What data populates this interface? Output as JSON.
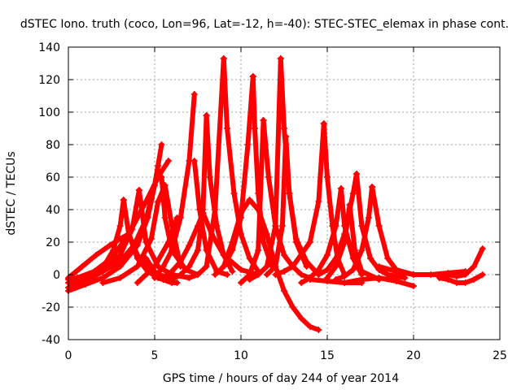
{
  "chart_data": {
    "type": "line",
    "title": "dSTEC Iono. truth (coco, Lon=96, Lat=-12, h=-40): STEC-STEC_elemax in phase cont.",
    "xlabel": "GPS time / hours of day 244 of year 2014",
    "ylabel": "dSTEC  / TECUs",
    "xlim": [
      0,
      25
    ],
    "ylim": [
      -40,
      140
    ],
    "xticks": [
      0,
      5,
      10,
      15,
      20,
      25
    ],
    "yticks": [
      -40,
      -20,
      0,
      20,
      40,
      60,
      80,
      100,
      120,
      140
    ],
    "grid": true,
    "legend": "none",
    "color": "#ff0000",
    "marker": "plus",
    "series": [
      {
        "x": [
          0.0,
          0.7,
          1.4,
          2.1,
          2.6,
          3.0,
          3.2
        ],
        "y": [
          -5,
          -3,
          0,
          6,
          15,
          30,
          46
        ]
      },
      {
        "x": [
          3.2,
          3.5,
          4.0,
          4.6,
          5.2,
          6.0
        ],
        "y": [
          46,
          25,
          10,
          2,
          -2,
          -5
        ]
      },
      {
        "x": [
          0.0,
          1.0,
          2.0,
          3.0,
          3.7,
          4.1
        ],
        "y": [
          -8,
          -4,
          2,
          12,
          28,
          52
        ]
      },
      {
        "x": [
          4.1,
          4.5,
          5.2,
          6.0,
          7.0
        ],
        "y": [
          52,
          20,
          5,
          0,
          -2
        ]
      },
      {
        "x": [
          0.0,
          1.0,
          2.0,
          3.0,
          4.0,
          4.6,
          5.0,
          5.2
        ],
        "y": [
          -10,
          -6,
          -2,
          5,
          18,
          35,
          55,
          67
        ]
      },
      {
        "x": [
          0.0,
          0.8,
          1.6,
          2.4,
          3.0,
          3.5
        ],
        "y": [
          -2,
          5,
          12,
          18,
          22,
          25
        ]
      },
      {
        "x": [
          3.5,
          4.0,
          4.6,
          5.2,
          6.0
        ],
        "y": [
          25,
          12,
          4,
          0,
          -2
        ]
      },
      {
        "x": [
          0.0,
          1.0,
          2.0,
          3.0,
          3.8,
          4.5,
          5.0,
          5.4
        ],
        "y": [
          -3,
          -1,
          2,
          8,
          18,
          34,
          55,
          80
        ]
      },
      {
        "x": [
          5.4,
          5.6,
          6.0,
          6.8,
          7.5
        ],
        "y": [
          60,
          35,
          15,
          3,
          0
        ]
      },
      {
        "x": [
          2.0,
          3.0,
          4.0,
          4.8,
          5.2,
          5.6,
          6.0,
          6.5
        ],
        "y": [
          -5,
          -2,
          5,
          22,
          45,
          55,
          30,
          5
        ]
      },
      {
        "x": [
          0.5,
          1.5,
          2.5,
          3.5,
          4.5,
          5.3,
          5.8
        ],
        "y": [
          -2,
          2,
          10,
          25,
          45,
          62,
          70
        ]
      },
      {
        "x": [
          4.5,
          5.0,
          5.5,
          6.0,
          6.3
        ],
        "y": [
          10,
          2,
          -3,
          -5,
          -5
        ]
      },
      {
        "x": [
          4.0,
          5.0,
          5.8,
          6.3
        ],
        "y": [
          -5,
          5,
          20,
          35
        ]
      },
      {
        "x": [
          5.0,
          5.5,
          6.0,
          6.5,
          7.0,
          7.3
        ],
        "y": [
          -2,
          5,
          15,
          35,
          70,
          111
        ]
      },
      {
        "x": [
          7.3,
          7.6,
          8.0,
          8.6,
          9.2
        ],
        "y": [
          70,
          40,
          15,
          2,
          0
        ]
      },
      {
        "x": [
          5.5,
          6.0,
          6.5,
          7.0,
          7.5,
          7.8
        ],
        "y": [
          -2,
          2,
          8,
          18,
          30,
          38
        ]
      },
      {
        "x": [
          7.8,
          8.3,
          9.0,
          10.0,
          11.0
        ],
        "y": [
          38,
          25,
          12,
          3,
          0
        ]
      },
      {
        "x": [
          6.0,
          6.5,
          7.0,
          7.5,
          7.8,
          8.0
        ],
        "y": [
          -3,
          0,
          5,
          15,
          40,
          98
        ]
      },
      {
        "x": [
          8.0,
          8.2,
          8.6,
          9.0,
          9.5
        ],
        "y": [
          98,
          60,
          30,
          12,
          2
        ]
      },
      {
        "x": [
          7.0,
          7.5,
          8.0,
          8.5,
          9.0
        ],
        "y": [
          -2,
          0,
          5,
          40,
          133
        ]
      },
      {
        "x": [
          9.0,
          9.2,
          9.6,
          10.0,
          10.5,
          11.0
        ],
        "y": [
          133,
          90,
          50,
          25,
          10,
          2
        ]
      },
      {
        "x": [
          8.5,
          9.0,
          9.5,
          10.0,
          10.4,
          10.7
        ],
        "y": [
          0,
          5,
          15,
          35,
          80,
          122
        ]
      },
      {
        "x": [
          10.7,
          10.8,
          11.0,
          11.3,
          11.8
        ],
        "y": [
          122,
          90,
          50,
          20,
          5
        ]
      },
      {
        "x": [
          9.0,
          9.5,
          10.0,
          10.5,
          11.0,
          11.5,
          12.0,
          12.5,
          13.0,
          13.5,
          14.0,
          14.5
        ],
        "y": [
          5,
          20,
          38,
          46,
          40,
          25,
          5,
          -10,
          -20,
          -27,
          -32,
          -34
        ]
      },
      {
        "x": [
          10.0,
          10.5,
          11.0,
          11.3
        ],
        "y": [
          -5,
          0,
          15,
          95
        ]
      },
      {
        "x": [
          11.3,
          11.6,
          12.0,
          12.5,
          13.0,
          13.5,
          14.0
        ],
        "y": [
          95,
          60,
          30,
          12,
          5,
          0,
          -2
        ]
      },
      {
        "x": [
          10.5,
          11.0,
          11.5,
          12.0,
          12.3
        ],
        "y": [
          -3,
          0,
          5,
          30,
          133
        ]
      },
      {
        "x": [
          12.3,
          12.5,
          12.8,
          13.2,
          13.8
        ],
        "y": [
          133,
          90,
          50,
          20,
          5
        ]
      },
      {
        "x": [
          11.5,
          12.0,
          12.4,
          12.6
        ],
        "y": [
          0,
          5,
          30,
          85
        ]
      },
      {
        "x": [
          12.6,
          12.8,
          13.2,
          13.8,
          14.5
        ],
        "y": [
          85,
          50,
          22,
          8,
          0
        ]
      },
      {
        "x": [
          12.0,
          12.5,
          13.0,
          14.0,
          14.5,
          14.8
        ],
        "y": [
          0,
          2,
          5,
          20,
          45,
          93
        ]
      },
      {
        "x": [
          14.8,
          15.0,
          15.3,
          15.6,
          16.0
        ],
        "y": [
          93,
          60,
          30,
          10,
          0
        ]
      },
      {
        "x": [
          13.5,
          14.0,
          14.5,
          15.0,
          15.5,
          15.8
        ],
        "y": [
          -5,
          -2,
          3,
          12,
          30,
          53
        ]
      },
      {
        "x": [
          15.8,
          16.0,
          16.5,
          17.0
        ],
        "y": [
          53,
          30,
          10,
          0
        ]
      },
      {
        "x": [
          14.5,
          15.0,
          15.5,
          16.0,
          16.5,
          16.7
        ],
        "y": [
          0,
          3,
          10,
          25,
          50,
          62
        ]
      },
      {
        "x": [
          16.7,
          17.0,
          17.5,
          18.0,
          18.5,
          19.5
        ],
        "y": [
          62,
          30,
          10,
          3,
          0,
          -2
        ]
      },
      {
        "x": [
          15.0,
          15.5,
          16.0,
          16.3
        ],
        "y": [
          -2,
          5,
          20,
          43
        ]
      },
      {
        "x": [
          16.3,
          16.6,
          17.0,
          18.0
        ],
        "y": [
          43,
          15,
          2,
          -3
        ]
      },
      {
        "x": [
          15.5,
          16.0,
          16.5,
          17.0,
          17.4,
          17.6
        ],
        "y": [
          -3,
          -1,
          3,
          15,
          35,
          54
        ]
      },
      {
        "x": [
          17.6,
          18.0,
          18.5,
          19.0,
          20.0,
          21.0
        ],
        "y": [
          54,
          30,
          10,
          3,
          0,
          0
        ]
      },
      {
        "x": [
          16.0,
          17.0,
          18.0,
          19.0,
          20.0
        ],
        "y": [
          -5,
          -3,
          -2,
          -4,
          -7
        ]
      },
      {
        "x": [
          14.0,
          15.0,
          16.0,
          17.0
        ],
        "y": [
          -3,
          -4,
          -5,
          -5
        ]
      },
      {
        "x": [
          18.0,
          19.0,
          20.0,
          21.0,
          22.0,
          23.0
        ],
        "y": [
          5,
          2,
          0,
          0,
          1,
          2
        ]
      },
      {
        "x": [
          21.5,
          22.0,
          22.5,
          23.0,
          23.5,
          24.0
        ],
        "y": [
          -2,
          -3,
          -5,
          -5,
          -3,
          0
        ]
      },
      {
        "x": [
          21.0,
          22.0,
          22.5,
          23.0,
          23.5,
          24.0
        ],
        "y": [
          0,
          0,
          -1,
          0,
          5,
          16
        ]
      }
    ]
  }
}
